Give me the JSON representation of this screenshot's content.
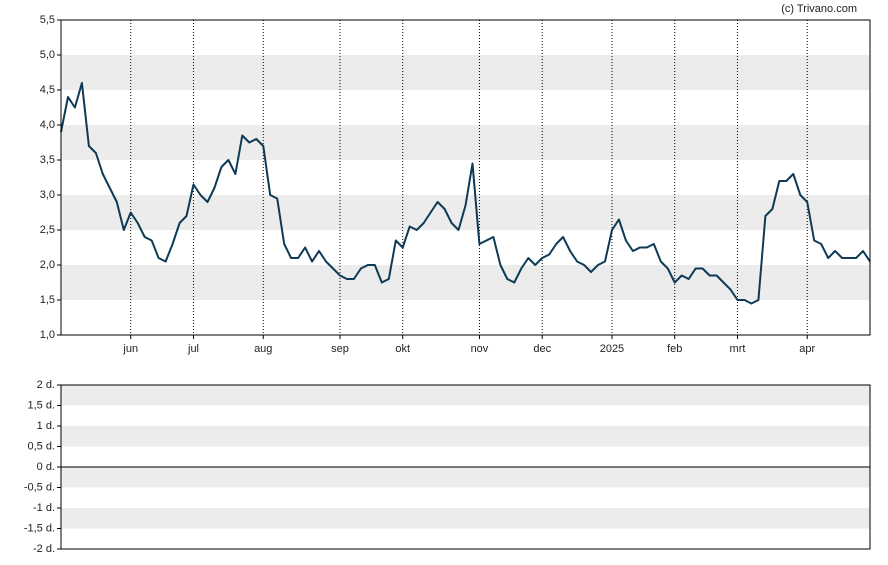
{
  "chart_data": [
    {
      "type": "line",
      "credit": "(c) Trivano.com",
      "stripes": true,
      "vgrid": true,
      "categories": [
        null,
        null,
        null,
        null,
        null,
        null,
        null,
        null,
        null,
        null,
        "jun",
        null,
        null,
        null,
        null,
        null,
        null,
        null,
        null,
        "jul",
        null,
        null,
        null,
        null,
        null,
        null,
        null,
        null,
        null,
        "aug",
        null,
        null,
        null,
        null,
        null,
        null,
        null,
        null,
        null,
        null,
        "sep",
        null,
        null,
        null,
        null,
        null,
        null,
        null,
        null,
        "okt",
        null,
        null,
        null,
        null,
        null,
        null,
        null,
        null,
        null,
        null,
        "nov",
        null,
        null,
        null,
        null,
        null,
        null,
        null,
        null,
        "dec",
        null,
        null,
        null,
        null,
        null,
        null,
        null,
        null,
        null,
        "2025",
        null,
        null,
        null,
        null,
        null,
        null,
        null,
        null,
        "feb",
        null,
        null,
        null,
        null,
        null,
        null,
        null,
        null,
        "mrt",
        null,
        null,
        null,
        null,
        null,
        null,
        null,
        null,
        null,
        "apr",
        null,
        null,
        null,
        null,
        null,
        null,
        null,
        null,
        null
      ],
      "series": [
        {
          "color": "#0e3a56",
          "values": [
            3.9,
            4.4,
            4.25,
            4.6,
            3.7,
            3.6,
            3.3,
            3.1,
            2.9,
            2.5,
            2.75,
            2.6,
            2.4,
            2.35,
            2.1,
            2.05,
            2.3,
            2.6,
            2.7,
            3.15,
            3.0,
            2.9,
            3.1,
            3.4,
            3.5,
            3.3,
            3.85,
            3.75,
            3.8,
            3.7,
            3.0,
            2.95,
            2.3,
            2.1,
            2.1,
            2.25,
            2.05,
            2.2,
            2.05,
            1.95,
            1.85,
            1.8,
            1.8,
            1.95,
            2.0,
            2.0,
            1.75,
            1.8,
            2.35,
            2.25,
            2.55,
            2.5,
            2.6,
            2.75,
            2.9,
            2.8,
            2.6,
            2.5,
            2.85,
            3.45,
            2.3,
            2.35,
            2.4,
            2.0,
            1.8,
            1.75,
            1.95,
            2.1,
            2.0,
            2.1,
            2.15,
            2.3,
            2.4,
            2.2,
            2.05,
            2.0,
            1.9,
            2.0,
            2.05,
            2.5,
            2.65,
            2.35,
            2.2,
            2.25,
            2.25,
            2.3,
            2.05,
            1.95,
            1.75,
            1.85,
            1.8,
            1.95,
            1.95,
            1.85,
            1.85,
            1.75,
            1.65,
            1.5,
            1.5,
            1.45,
            1.5,
            2.7,
            2.8,
            3.2,
            3.2,
            3.3,
            3.0,
            2.9,
            2.35,
            2.3,
            2.1,
            2.2,
            2.1,
            2.1,
            2.1,
            2.2,
            2.05
          ]
        }
      ],
      "ylim": [
        1,
        5.5
      ],
      "yticks": [
        {
          "value": 1,
          "label": "1,0"
        },
        {
          "value": 1.5,
          "label": "1,5"
        },
        {
          "value": 2,
          "label": "2,0"
        },
        {
          "value": 2.5,
          "label": "2,5"
        },
        {
          "value": 3,
          "label": "3,0"
        },
        {
          "value": 3.5,
          "label": "3,5"
        },
        {
          "value": 4,
          "label": "4,0"
        },
        {
          "value": 4.5,
          "label": "4,5"
        },
        {
          "value": 5,
          "label": "5,0"
        },
        {
          "value": 5.5,
          "label": "5,5"
        }
      ]
    },
    {
      "type": "line",
      "stripes": true,
      "zero_line": true,
      "ylim": [
        -2,
        2
      ],
      "yticks": [
        {
          "value": -2,
          "label": "-2 d."
        },
        {
          "value": -1.5,
          "label": "-1,5 d."
        },
        {
          "value": -1,
          "label": "-1 d."
        },
        {
          "value": -0.5,
          "label": "-0,5 d."
        },
        {
          "value": 0,
          "label": "0 d."
        },
        {
          "value": 0.5,
          "label": "0,5 d."
        },
        {
          "value": 1,
          "label": "1 d."
        },
        {
          "value": 1.5,
          "label": "1,5 d."
        },
        {
          "value": 2,
          "label": "2 d."
        }
      ]
    }
  ]
}
